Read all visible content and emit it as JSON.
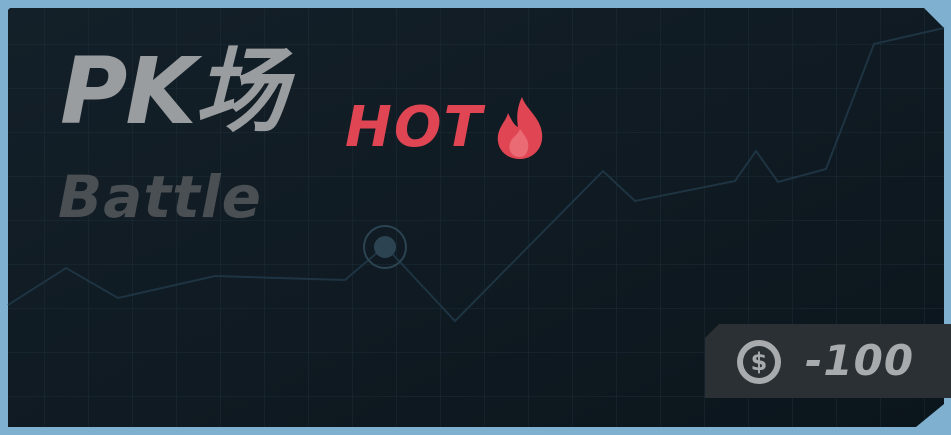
{
  "card": {
    "title": "PK场",
    "subtitle": "Battle",
    "badge": "HOT",
    "cost": "-100"
  },
  "icons": {
    "badge_icon": "flame-icon",
    "cost_icon": "coin-dollar-icon"
  },
  "colors": {
    "background": "#0e1a22",
    "frame": "#7fb0cf",
    "title": "#9a9d9f",
    "subtitle": "#4a4f53",
    "hot": "#e04553",
    "cost_panel": "#2a3034"
  }
}
